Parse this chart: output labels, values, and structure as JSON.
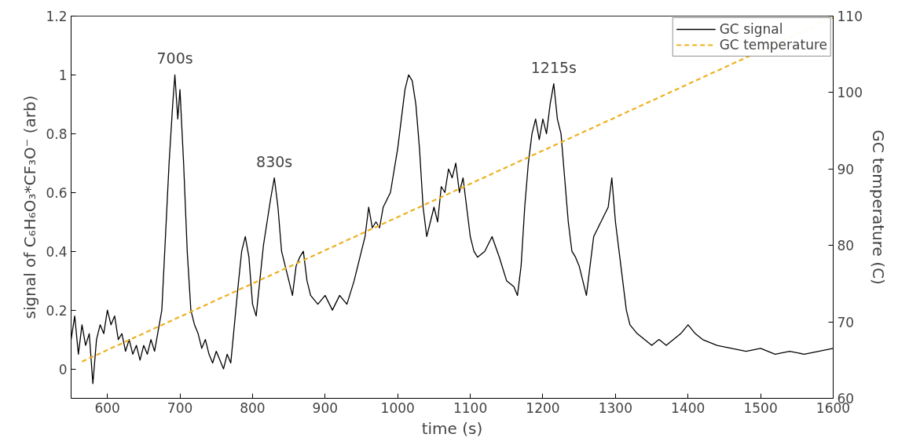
{
  "chart_data": {
    "type": "line",
    "xlabel": "time (s)",
    "ylabel": "signal of C₆H₆O₃*CF₃O⁻ (arb)",
    "y2label": "GC temperature (C)",
    "xlim": [
      550,
      1600
    ],
    "xticks": [
      600,
      700,
      800,
      900,
      1000,
      1100,
      1200,
      1300,
      1400,
      1500,
      1600
    ],
    "ylim": [
      -0.1,
      1.2
    ],
    "yticks": [
      0,
      0.2,
      0.4,
      0.6,
      0.8,
      1,
      1.2
    ],
    "y2lim": [
      60,
      110
    ],
    "y2ticks": [
      60,
      70,
      80,
      90,
      100,
      110
    ],
    "grid": false,
    "legend": "top right",
    "annotations": [
      {
        "text": "700s",
        "x": 693,
        "y": 1.0
      },
      {
        "text": "830s",
        "x": 830,
        "y": 0.65
      },
      {
        "text": "1215s",
        "x": 1215,
        "y": 0.97
      }
    ],
    "series": [
      {
        "name": "GC signal",
        "color": "#000000",
        "line_style": "solid",
        "x": [
          550,
          555,
          560,
          565,
          570,
          575,
          580,
          585,
          590,
          595,
          600,
          605,
          610,
          615,
          620,
          625,
          630,
          635,
          640,
          645,
          650,
          655,
          660,
          665,
          670,
          675,
          680,
          685,
          690,
          693,
          697,
          700,
          705,
          710,
          715,
          720,
          725,
          730,
          735,
          740,
          745,
          750,
          755,
          760,
          765,
          770,
          775,
          780,
          785,
          790,
          795,
          800,
          805,
          810,
          815,
          820,
          825,
          830,
          835,
          840,
          845,
          850,
          855,
          860,
          865,
          870,
          875,
          880,
          890,
          900,
          910,
          920,
          930,
          940,
          950,
          955,
          960,
          965,
          970,
          975,
          980,
          990,
          1000,
          1005,
          1010,
          1015,
          1020,
          1025,
          1030,
          1035,
          1040,
          1045,
          1050,
          1055,
          1060,
          1065,
          1070,
          1075,
          1080,
          1085,
          1090,
          1095,
          1100,
          1105,
          1110,
          1120,
          1130,
          1140,
          1150,
          1160,
          1165,
          1170,
          1175,
          1180,
          1185,
          1190,
          1195,
          1200,
          1205,
          1210,
          1215,
          1220,
          1225,
          1230,
          1235,
          1240,
          1245,
          1250,
          1255,
          1260,
          1265,
          1270,
          1280,
          1290,
          1295,
          1300,
          1305,
          1310,
          1315,
          1320,
          1330,
          1340,
          1350,
          1360,
          1370,
          1380,
          1390,
          1400,
          1410,
          1420,
          1440,
          1460,
          1480,
          1500,
          1520,
          1540,
          1560,
          1580,
          1600
        ],
        "values": [
          0.1,
          0.18,
          0.05,
          0.15,
          0.08,
          0.12,
          -0.05,
          0.1,
          0.15,
          0.12,
          0.2,
          0.15,
          0.18,
          0.1,
          0.12,
          0.06,
          0.1,
          0.05,
          0.08,
          0.03,
          0.08,
          0.05,
          0.1,
          0.06,
          0.13,
          0.2,
          0.45,
          0.7,
          0.9,
          1.0,
          0.85,
          0.95,
          0.7,
          0.4,
          0.2,
          0.15,
          0.12,
          0.07,
          0.1,
          0.05,
          0.02,
          0.06,
          0.03,
          0.0,
          0.05,
          0.02,
          0.15,
          0.28,
          0.4,
          0.45,
          0.38,
          0.22,
          0.18,
          0.3,
          0.42,
          0.5,
          0.58,
          0.65,
          0.55,
          0.4,
          0.35,
          0.3,
          0.25,
          0.35,
          0.38,
          0.4,
          0.3,
          0.25,
          0.22,
          0.25,
          0.2,
          0.25,
          0.22,
          0.3,
          0.4,
          0.45,
          0.55,
          0.48,
          0.5,
          0.48,
          0.55,
          0.6,
          0.75,
          0.85,
          0.95,
          1.0,
          0.98,
          0.9,
          0.75,
          0.55,
          0.45,
          0.5,
          0.55,
          0.5,
          0.62,
          0.6,
          0.68,
          0.65,
          0.7,
          0.6,
          0.65,
          0.55,
          0.45,
          0.4,
          0.38,
          0.4,
          0.45,
          0.38,
          0.3,
          0.28,
          0.25,
          0.35,
          0.55,
          0.7,
          0.8,
          0.85,
          0.78,
          0.85,
          0.8,
          0.9,
          0.97,
          0.85,
          0.8,
          0.65,
          0.5,
          0.4,
          0.38,
          0.35,
          0.3,
          0.25,
          0.35,
          0.45,
          0.5,
          0.55,
          0.65,
          0.5,
          0.4,
          0.3,
          0.2,
          0.15,
          0.12,
          0.1,
          0.08,
          0.1,
          0.08,
          0.1,
          0.12,
          0.15,
          0.12,
          0.1,
          0.08,
          0.07,
          0.06,
          0.07,
          0.05,
          0.06,
          0.05,
          0.06,
          0.07
        ]
      },
      {
        "name": "GC temperature",
        "color": "#edb120",
        "line_style": "dashed",
        "axis": "y2",
        "x": [
          565,
          1600
        ],
        "values": [
          64.8,
          109.8
        ]
      }
    ]
  }
}
